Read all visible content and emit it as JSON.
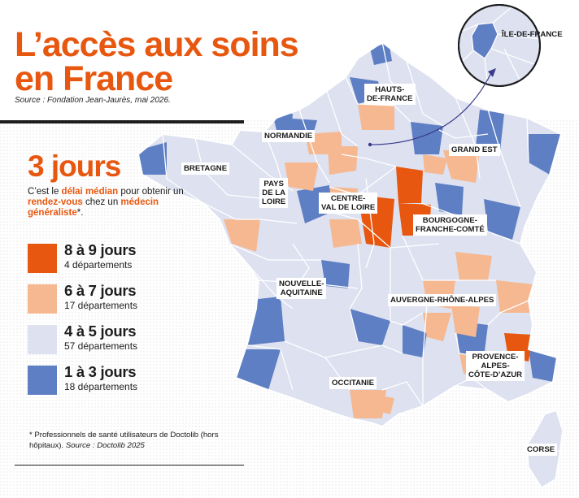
{
  "title_line1": "L’accès aux soins",
  "title_line2": "en France",
  "source": "Source : Fondation Jean-Jaurès, mai 2026.",
  "headline": "3 jours",
  "description": {
    "part1": "C’est le ",
    "highlight1": "délai médian",
    "part2": " pour obtenir un ",
    "highlight2": "rendez-vous",
    "part3": " chez un ",
    "highlight3": "médecin généraliste",
    "part4": "*."
  },
  "legend": [
    {
      "label": "8 à 9 jours",
      "count": "4 départements",
      "color": "#e8570f"
    },
    {
      "label": "6 à 7 jours",
      "count": "17 départements",
      "color": "#f6b891"
    },
    {
      "label": "4 à 5 jours",
      "count": "57 départements",
      "color": "#dde1f0"
    },
    {
      "label": "1 à 3 jours",
      "count": "18 départements",
      "color": "#5e7fc3"
    }
  ],
  "footnote": {
    "text": "* Professionnels de santé utilisateurs de Doctolib (hors hôpitaux). ",
    "source": "Source : Doctolib 2025"
  },
  "regions": {
    "hauts_de_france": "HAUTS-\nDE-FRANCE",
    "normandie": "NORMANDIE",
    "grand_est": "GRAND EST",
    "bretagne": "BRETAGNE",
    "pays_de_la_loire": "PAYS\nDE LA\nLOIRE",
    "centre_val_de_loire": "CENTRE-\nVAL DE LOIRE",
    "bourgogne_franche_comte": "BOURGOGNE-\nFRANCHE-COMTÉ",
    "nouvelle_aquitaine": "NOUVELLE-\nAQUITAINE",
    "auvergne_rhone_alpes": "AUVERGNE-RHÔNE-ALPES",
    "occitanie": "OCCITANIE",
    "provence_alpes_cote_dazur": "PROVENCE-\nALPES-\nCÔTE-D’AZUR",
    "corse": "CORSE",
    "ile_de_france": "ÎLE-DE-FRANCE"
  }
}
